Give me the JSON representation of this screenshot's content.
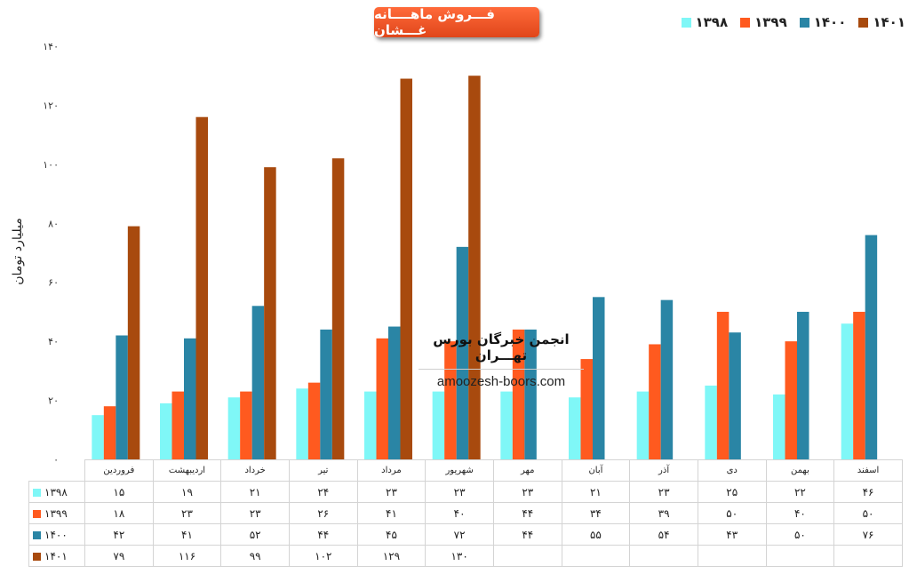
{
  "chart_data": {
    "type": "bar",
    "title": "فـــروش ماهــــانه غـــشان",
    "ylabel": "میلیارد تومان",
    "ylim": [
      0,
      140
    ],
    "yticks": [
      "۰",
      "۲۰",
      "۴۰",
      "۶۰",
      "۸۰",
      "۱۰۰",
      "۱۲۰",
      "۱۴۰"
    ],
    "ytick_values": [
      0,
      20,
      40,
      60,
      80,
      100,
      120,
      140
    ],
    "legend_position": "top-right",
    "grid": false,
    "categories": [
      "فروردین",
      "اردیبهشت",
      "خرداد",
      "تیر",
      "مرداد",
      "شهریور",
      "مهر",
      "آبان",
      "آذر",
      "دی",
      "بهمن",
      "اسفند"
    ],
    "series": [
      {
        "name": "۱۳۹۸",
        "color": "#7ff7f7",
        "values": [
          15,
          19,
          21,
          24,
          23,
          23,
          23,
          21,
          23,
          25,
          22,
          46
        ],
        "labels": [
          "۱۵",
          "۱۹",
          "۲۱",
          "۲۴",
          "۲۳",
          "۲۳",
          "۲۳",
          "۲۱",
          "۲۳",
          "۲۵",
          "۲۲",
          "۴۶"
        ]
      },
      {
        "name": "۱۳۹۹",
        "color": "#ff5a1f",
        "values": [
          18,
          23,
          23,
          26,
          41,
          40,
          44,
          34,
          39,
          50,
          40,
          50
        ],
        "labels": [
          "۱۸",
          "۲۳",
          "۲۳",
          "۲۶",
          "۴۱",
          "۴۰",
          "۴۴",
          "۳۴",
          "۳۹",
          "۵۰",
          "۴۰",
          "۵۰"
        ]
      },
      {
        "name": "۱۴۰۰",
        "color": "#2a85a5",
        "values": [
          42,
          41,
          52,
          44,
          45,
          72,
          44,
          55,
          54,
          43,
          50,
          76
        ],
        "labels": [
          "۴۲",
          "۴۱",
          "۵۲",
          "۴۴",
          "۴۵",
          "۷۲",
          "۴۴",
          "۵۵",
          "۵۴",
          "۴۳",
          "۵۰",
          "۷۶"
        ]
      },
      {
        "name": "۱۴۰۱",
        "color": "#a84a0e",
        "values": [
          79,
          116,
          99,
          102,
          129,
          130,
          null,
          null,
          null,
          null,
          null,
          null
        ],
        "labels": [
          "۷۹",
          "۱۱۶",
          "۹۹",
          "۱۰۲",
          "۱۲۹",
          "۱۳۰",
          "",
          "",
          "",
          "",
          "",
          ""
        ]
      }
    ]
  },
  "watermark": {
    "title": "انجمن خبرگان بورس تهـــران",
    "url": "amoozesh-boors.com"
  }
}
